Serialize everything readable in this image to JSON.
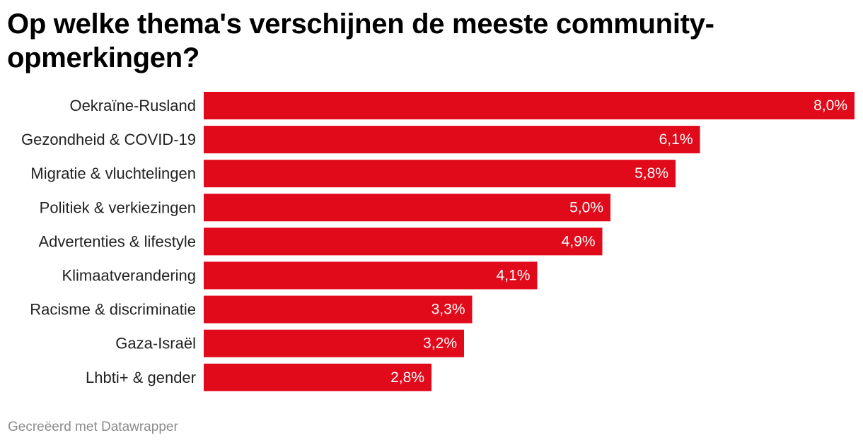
{
  "title": "Op welke thema's verschijnen de meeste community-opmerkingen?",
  "footer": "Gecreëerd met Datawrapper",
  "colors": {
    "bar": "#e10a1a",
    "value_label": "#ffffff",
    "category_label": "#222222",
    "footer": "#8c8c8c"
  },
  "chart_data": {
    "type": "bar",
    "orientation": "horizontal",
    "categories": [
      "Oekraïne-Rusland",
      "Gezondheid & COVID-19",
      "Migratie & vluchtelingen",
      "Politiek & verkiezingen",
      "Advertenties & lifestyle",
      "Klimaatverandering",
      "Racisme & discriminatie",
      "Gaza-Israël",
      "Lhbti+ & gender"
    ],
    "values": [
      8.0,
      6.1,
      5.8,
      5.0,
      4.9,
      4.1,
      3.3,
      3.2,
      2.8
    ],
    "value_labels": [
      "8,0%",
      "6,1%",
      "5,8%",
      "5,0%",
      "4,9%",
      "4,1%",
      "3,3%",
      "3,2%",
      "2,8%"
    ],
    "unit": "%",
    "xlim": [
      0,
      8.0
    ],
    "grid": false,
    "legend": "none"
  }
}
